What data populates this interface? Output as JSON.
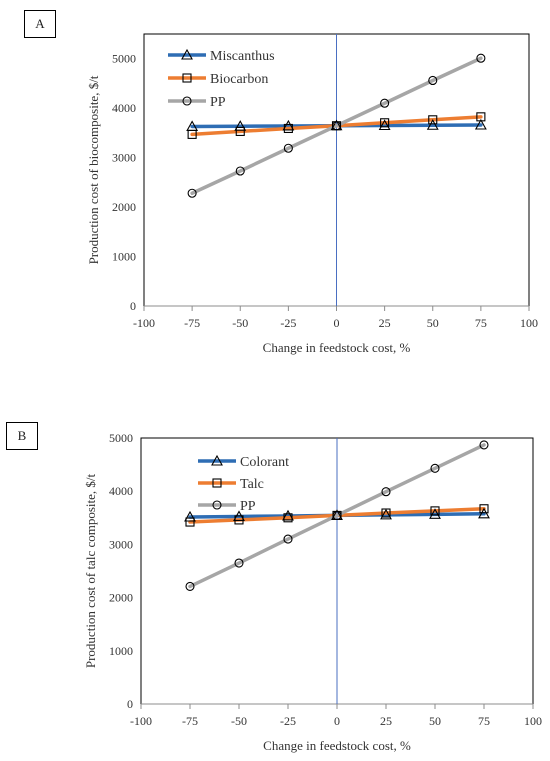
{
  "chart_data": [
    {
      "type": "line",
      "panel_label": "A",
      "xlabel": "Change in feedstock cost, %",
      "ylabel": "Production cost of biocomposite, $/t",
      "xlim": [
        -100,
        100
      ],
      "ylim": [
        0,
        5500
      ],
      "x_ticks": [
        -100,
        -75,
        -50,
        -25,
        0,
        25,
        50,
        75,
        100
      ],
      "y_ticks": [
        0,
        1000,
        2000,
        3000,
        4000,
        5000
      ],
      "legend": "top-left",
      "x": [
        -75,
        -50,
        -25,
        0,
        25,
        50,
        75
      ],
      "series": [
        {
          "name": "Miscanthus",
          "marker": "triangle",
          "color": "#2e6db4",
          "values": [
            3630,
            3635,
            3640,
            3645,
            3650,
            3655,
            3660
          ]
        },
        {
          "name": "Biocarbon",
          "marker": "square",
          "color": "#ed7d31",
          "values": [
            3470,
            3530,
            3590,
            3645,
            3705,
            3765,
            3825
          ]
        },
        {
          "name": "PP",
          "marker": "circle",
          "color": "#a6a6a6",
          "values": [
            2280,
            2730,
            3190,
            3645,
            4100,
            4560,
            5010
          ]
        }
      ]
    },
    {
      "type": "line",
      "panel_label": "B",
      "xlabel": "Change in feedstock cost, %",
      "ylabel": "Production cost of talc composite, $/t",
      "xlim": [
        -100,
        100
      ],
      "ylim": [
        0,
        5000
      ],
      "x_ticks": [
        -100,
        -75,
        -50,
        -25,
        0,
        25,
        50,
        75,
        100
      ],
      "y_ticks": [
        0,
        1000,
        2000,
        3000,
        4000,
        5000
      ],
      "legend": "top-left",
      "x": [
        -75,
        -50,
        -25,
        0,
        25,
        50,
        75
      ],
      "series": [
        {
          "name": "Colorant",
          "marker": "triangle",
          "color": "#2e6db4",
          "values": [
            3515,
            3525,
            3535,
            3545,
            3555,
            3565,
            3575
          ]
        },
        {
          "name": "Talc",
          "marker": "square",
          "color": "#ed7d31",
          "values": [
            3420,
            3460,
            3500,
            3545,
            3590,
            3630,
            3670
          ]
        },
        {
          "name": "PP",
          "marker": "circle",
          "color": "#a6a6a6",
          "values": [
            2210,
            2650,
            3100,
            3545,
            3990,
            4430,
            4870
          ]
        }
      ]
    }
  ]
}
